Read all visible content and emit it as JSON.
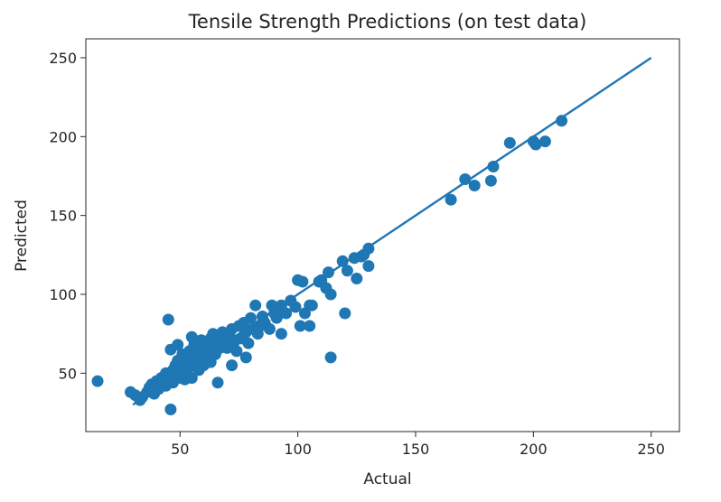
{
  "chart_data": {
    "type": "scatter",
    "title": "Tensile Strength Predictions (on test data)",
    "xlabel": "Actual",
    "ylabel": "Predicted",
    "xlim": [
      10,
      262
    ],
    "ylim": [
      13,
      262
    ],
    "xticks": [
      50,
      100,
      150,
      200,
      250
    ],
    "yticks": [
      50,
      100,
      150,
      200,
      250
    ],
    "grid": false,
    "colors": {
      "marker": "#1f77b4",
      "line": "#1f77b4",
      "axes": "#262626"
    },
    "reference_line": {
      "x": [
        30,
        250
      ],
      "y": [
        30,
        250
      ]
    },
    "points": [
      [
        15,
        45
      ],
      [
        29,
        38
      ],
      [
        31,
        36
      ],
      [
        33,
        33
      ],
      [
        34,
        35
      ],
      [
        36,
        38
      ],
      [
        37,
        41
      ],
      [
        38,
        43
      ],
      [
        39,
        37
      ],
      [
        40,
        45
      ],
      [
        41,
        40
      ],
      [
        42,
        47
      ],
      [
        43,
        44
      ],
      [
        44,
        50
      ],
      [
        44,
        42
      ],
      [
        45,
        46
      ],
      [
        45,
        84
      ],
      [
        46,
        27
      ],
      [
        46,
        65
      ],
      [
        47,
        52
      ],
      [
        47,
        44
      ],
      [
        48,
        55
      ],
      [
        48,
        48
      ],
      [
        49,
        68
      ],
      [
        49,
        58
      ],
      [
        50,
        50
      ],
      [
        50,
        47
      ],
      [
        51,
        53
      ],
      [
        51,
        62
      ],
      [
        52,
        46
      ],
      [
        52,
        57
      ],
      [
        53,
        59
      ],
      [
        53,
        49
      ],
      [
        54,
        64
      ],
      [
        54,
        54
      ],
      [
        55,
        73
      ],
      [
        55,
        47
      ],
      [
        56,
        61
      ],
      [
        56,
        68
      ],
      [
        57,
        56
      ],
      [
        57,
        66
      ],
      [
        58,
        60
      ],
      [
        58,
        52
      ],
      [
        59,
        65
      ],
      [
        59,
        71
      ],
      [
        60,
        63
      ],
      [
        60,
        55
      ],
      [
        61,
        58
      ],
      [
        61,
        67
      ],
      [
        62,
        69
      ],
      [
        62,
        61
      ],
      [
        63,
        72
      ],
      [
        63,
        57
      ],
      [
        64,
        64
      ],
      [
        64,
        75
      ],
      [
        65,
        70
      ],
      [
        65,
        62
      ],
      [
        66,
        44
      ],
      [
        66,
        68
      ],
      [
        67,
        73
      ],
      [
        67,
        66
      ],
      [
        68,
        76
      ],
      [
        68,
        70
      ],
      [
        69,
        72
      ],
      [
        70,
        66
      ],
      [
        71,
        74
      ],
      [
        72,
        55
      ],
      [
        72,
        78
      ],
      [
        73,
        70
      ],
      [
        74,
        64
      ],
      [
        75,
        80
      ],
      [
        76,
        72
      ],
      [
        77,
        82
      ],
      [
        78,
        76
      ],
      [
        78,
        60
      ],
      [
        79,
        69
      ],
      [
        80,
        85
      ],
      [
        81,
        78
      ],
      [
        82,
        93
      ],
      [
        83,
        75
      ],
      [
        84,
        80
      ],
      [
        85,
        86
      ],
      [
        86,
        82
      ],
      [
        88,
        78
      ],
      [
        89,
        93
      ],
      [
        90,
        88
      ],
      [
        91,
        85
      ],
      [
        92,
        90
      ],
      [
        93,
        75
      ],
      [
        93,
        93
      ],
      [
        95,
        88
      ],
      [
        97,
        96
      ],
      [
        99,
        92
      ],
      [
        100,
        109
      ],
      [
        101,
        80
      ],
      [
        102,
        108
      ],
      [
        103,
        88
      ],
      [
        105,
        93
      ],
      [
        105,
        80
      ],
      [
        106,
        93
      ],
      [
        109,
        108
      ],
      [
        110,
        109
      ],
      [
        112,
        104
      ],
      [
        113,
        114
      ],
      [
        114,
        100
      ],
      [
        114,
        60
      ],
      [
        119,
        121
      ],
      [
        120,
        88
      ],
      [
        121,
        115
      ],
      [
        124,
        123
      ],
      [
        125,
        110
      ],
      [
        127,
        124
      ],
      [
        128,
        125
      ],
      [
        130,
        129
      ],
      [
        130,
        118
      ],
      [
        165,
        160
      ],
      [
        171,
        173
      ],
      [
        175,
        169
      ],
      [
        182,
        172
      ],
      [
        183,
        181
      ],
      [
        190,
        196
      ],
      [
        200,
        197
      ],
      [
        201,
        195
      ],
      [
        205,
        197
      ],
      [
        212,
        210
      ]
    ]
  }
}
